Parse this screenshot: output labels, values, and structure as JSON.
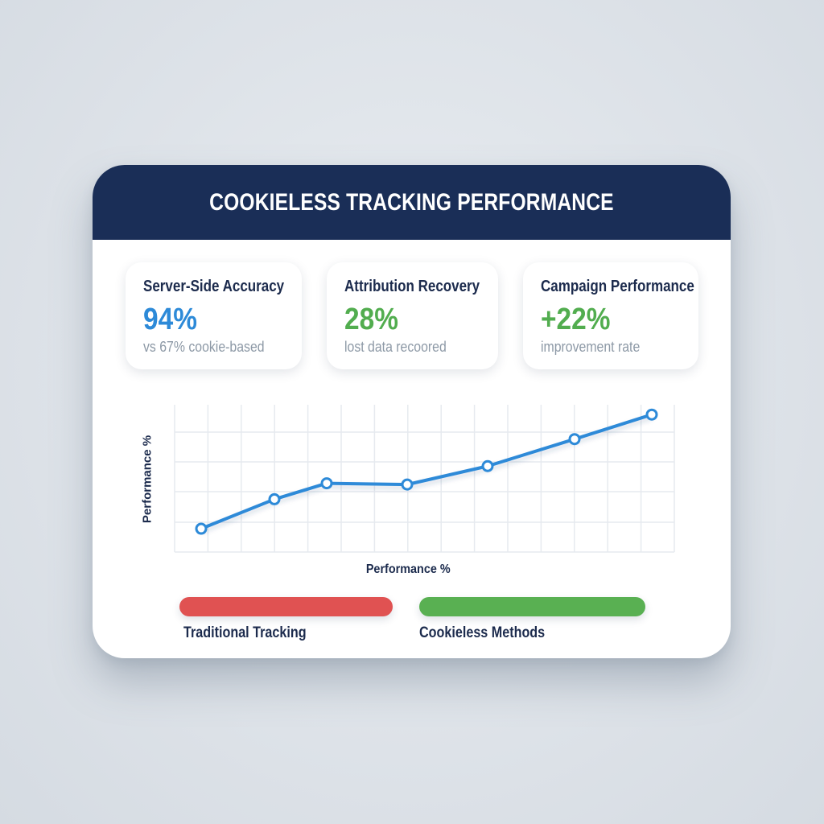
{
  "header": {
    "title": "COOKIELESS TRACKING PERFORMANCE"
  },
  "kpis": [
    {
      "title": "Server-Side Accuracy",
      "value": "94%",
      "subtitle": "vs 67% cookie-based",
      "color": "#2d8ad8"
    },
    {
      "title": "Attribution Recovery",
      "value": "28%",
      "subtitle": "lost data recoored",
      "color": "#52ad4f"
    },
    {
      "title": "Campaign Performance",
      "value": "+22%",
      "subtitle": "improvement rate",
      "color": "#52ad4f"
    }
  ],
  "legend": [
    {
      "label": "Traditional Tracking",
      "color": "#e05252"
    },
    {
      "label": "Cookieless Methods",
      "color": "#59b052"
    }
  ],
  "chart_data": {
    "type": "line",
    "title": "",
    "xlabel": "Performance %",
    "ylabel": "Performance %",
    "x": [
      1,
      2,
      3,
      4,
      5,
      6,
      7
    ],
    "series": [
      {
        "name": "Performance",
        "color": "#2d8ad8",
        "values": [
          19,
          43,
          56,
          55,
          70,
          92,
          112
        ]
      }
    ],
    "ylim": [
      0,
      120
    ],
    "grid": true,
    "legend_position": "bottom"
  }
}
